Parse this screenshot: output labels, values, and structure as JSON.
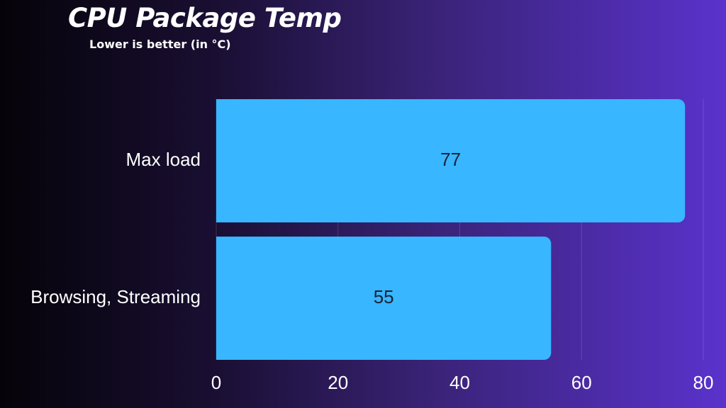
{
  "chart_data": {
    "type": "bar",
    "orientation": "horizontal",
    "title": "CPU Package Temp",
    "subtitle": "Lower is better (in °C)",
    "categories": [
      "Max load",
      "Browsing, Streaming"
    ],
    "values": [
      77,
      55
    ],
    "data_labels": [
      "77",
      "55"
    ],
    "xlim": [
      0,
      80
    ],
    "xticks": [
      0,
      20,
      40,
      60,
      80
    ],
    "xtick_labels": [
      "0",
      "20",
      "40",
      "60",
      "80"
    ],
    "xlabel": "",
    "ylabel": "",
    "grid": true,
    "legend": "none",
    "bar_color": "#38b6ff"
  }
}
